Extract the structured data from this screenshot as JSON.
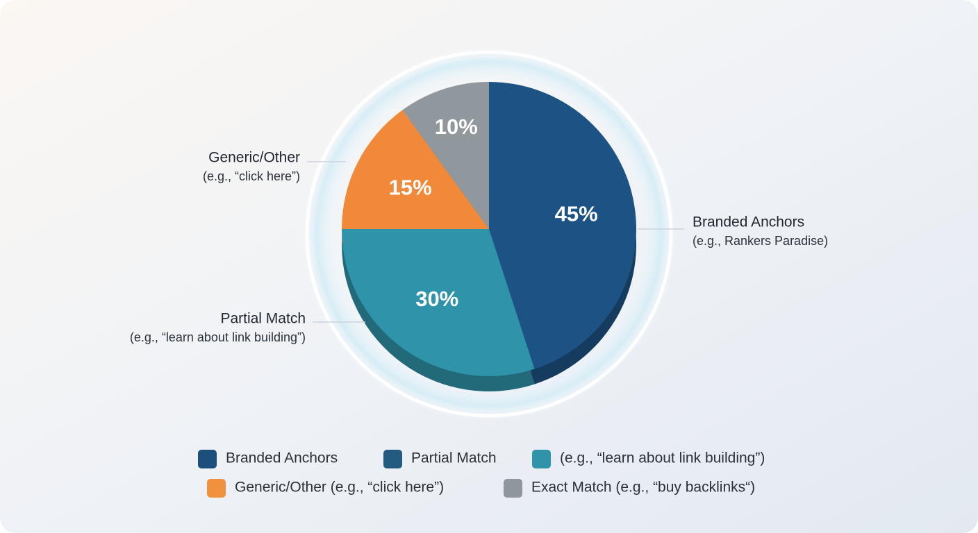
{
  "chart_data": {
    "type": "pie",
    "categories": [
      "Branded Anchors",
      "Partial Match",
      "Generic/Other",
      null
    ],
    "subtitles": [
      "(e.g., Rankers Paradise)",
      "(e.g., “learn about link building”)",
      "(e.g., “click here”)",
      null
    ],
    "values": [
      45,
      30,
      15,
      10
    ],
    "value_labels": [
      "45%",
      "30%",
      "15%",
      "10%"
    ],
    "colors": [
      "#1d5384",
      "#2f93aa",
      "#f0893a",
      "#90979d"
    ],
    "legend": [
      {
        "label": "Branded Anchors",
        "color": "#1d4f7c"
      },
      {
        "label": "Partial Match",
        "color": "#235a80"
      },
      {
        "label": "(e.g., “learn about link building”)",
        "color": "#2f93aa"
      },
      {
        "label": "Generic/Other (e.g., “click here”)",
        "color": "#f0913f"
      },
      {
        "label": "Exact Match (e.g., “buy backlinks“)",
        "color": "#8f969c"
      }
    ]
  }
}
